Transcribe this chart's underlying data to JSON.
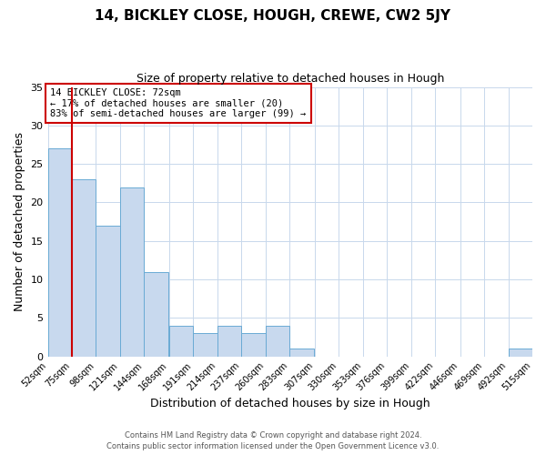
{
  "title": "14, BICKLEY CLOSE, HOUGH, CREWE, CW2 5JY",
  "subtitle": "Size of property relative to detached houses in Hough",
  "xlabel": "Distribution of detached houses by size in Hough",
  "ylabel": "Number of detached properties",
  "bar_color": "#c8d9ee",
  "bar_edgecolor": "#6aaad4",
  "annotation_box_text": "14 BICKLEY CLOSE: 72sqm\n← 17% of detached houses are smaller (20)\n83% of semi-detached houses are larger (99) →",
  "annotation_box_edgecolor": "#cc0000",
  "property_line_x": 75,
  "property_line_color": "#cc0000",
  "background_color": "#ffffff",
  "grid_color": "#c8d8ec",
  "footer_line1": "Contains HM Land Registry data © Crown copyright and database right 2024.",
  "footer_line2": "Contains public sector information licensed under the Open Government Licence v3.0.",
  "bin_edges": [
    52,
    75,
    98,
    121,
    144,
    168,
    191,
    214,
    237,
    260,
    283,
    307,
    330,
    353,
    376,
    399,
    422,
    446,
    469,
    492,
    515
  ],
  "bin_labels": [
    "52sqm",
    "75sqm",
    "98sqm",
    "121sqm",
    "144sqm",
    "168sqm",
    "191sqm",
    "214sqm",
    "237sqm",
    "260sqm",
    "283sqm",
    "307sqm",
    "330sqm",
    "353sqm",
    "376sqm",
    "399sqm",
    "422sqm",
    "446sqm",
    "469sqm",
    "492sqm",
    "515sqm"
  ],
  "counts": [
    27,
    23,
    17,
    22,
    11,
    4,
    3,
    4,
    3,
    4,
    1,
    0,
    0,
    0,
    0,
    0,
    0,
    0,
    0,
    1,
    0
  ],
  "ylim": [
    0,
    35
  ],
  "yticks": [
    0,
    5,
    10,
    15,
    20,
    25,
    30,
    35
  ]
}
